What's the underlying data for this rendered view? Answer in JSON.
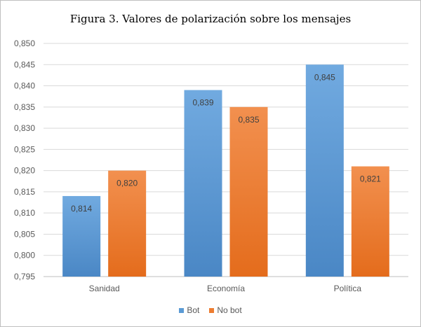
{
  "chart_data": {
    "type": "bar",
    "title": "Figura 3. Valores de polarización sobre los mensajes",
    "categories": [
      "Sanidad",
      "Economía",
      "Política"
    ],
    "series": [
      {
        "name": "Bot",
        "values": [
          0.814,
          0.839,
          0.845
        ],
        "labels": [
          "0,814",
          "0,839",
          "0,845"
        ],
        "color": "#5b9bd5"
      },
      {
        "name": "No bot",
        "values": [
          0.82,
          0.835,
          0.821
        ],
        "labels": [
          "0,820",
          "0,835",
          "0,821"
        ],
        "color": "#ed7d31"
      }
    ],
    "ylim": [
      0.795,
      0.85
    ],
    "yticks": [
      "0,795",
      "0,800",
      "0,805",
      "0,810",
      "0,815",
      "0,820",
      "0,825",
      "0,830",
      "0,835",
      "0,840",
      "0,845",
      "0,850"
    ],
    "ytick_values": [
      0.795,
      0.8,
      0.805,
      0.81,
      0.815,
      0.82,
      0.825,
      0.83,
      0.835,
      0.84,
      0.845,
      0.85
    ],
    "grid": true,
    "legend_position": "bottom"
  }
}
